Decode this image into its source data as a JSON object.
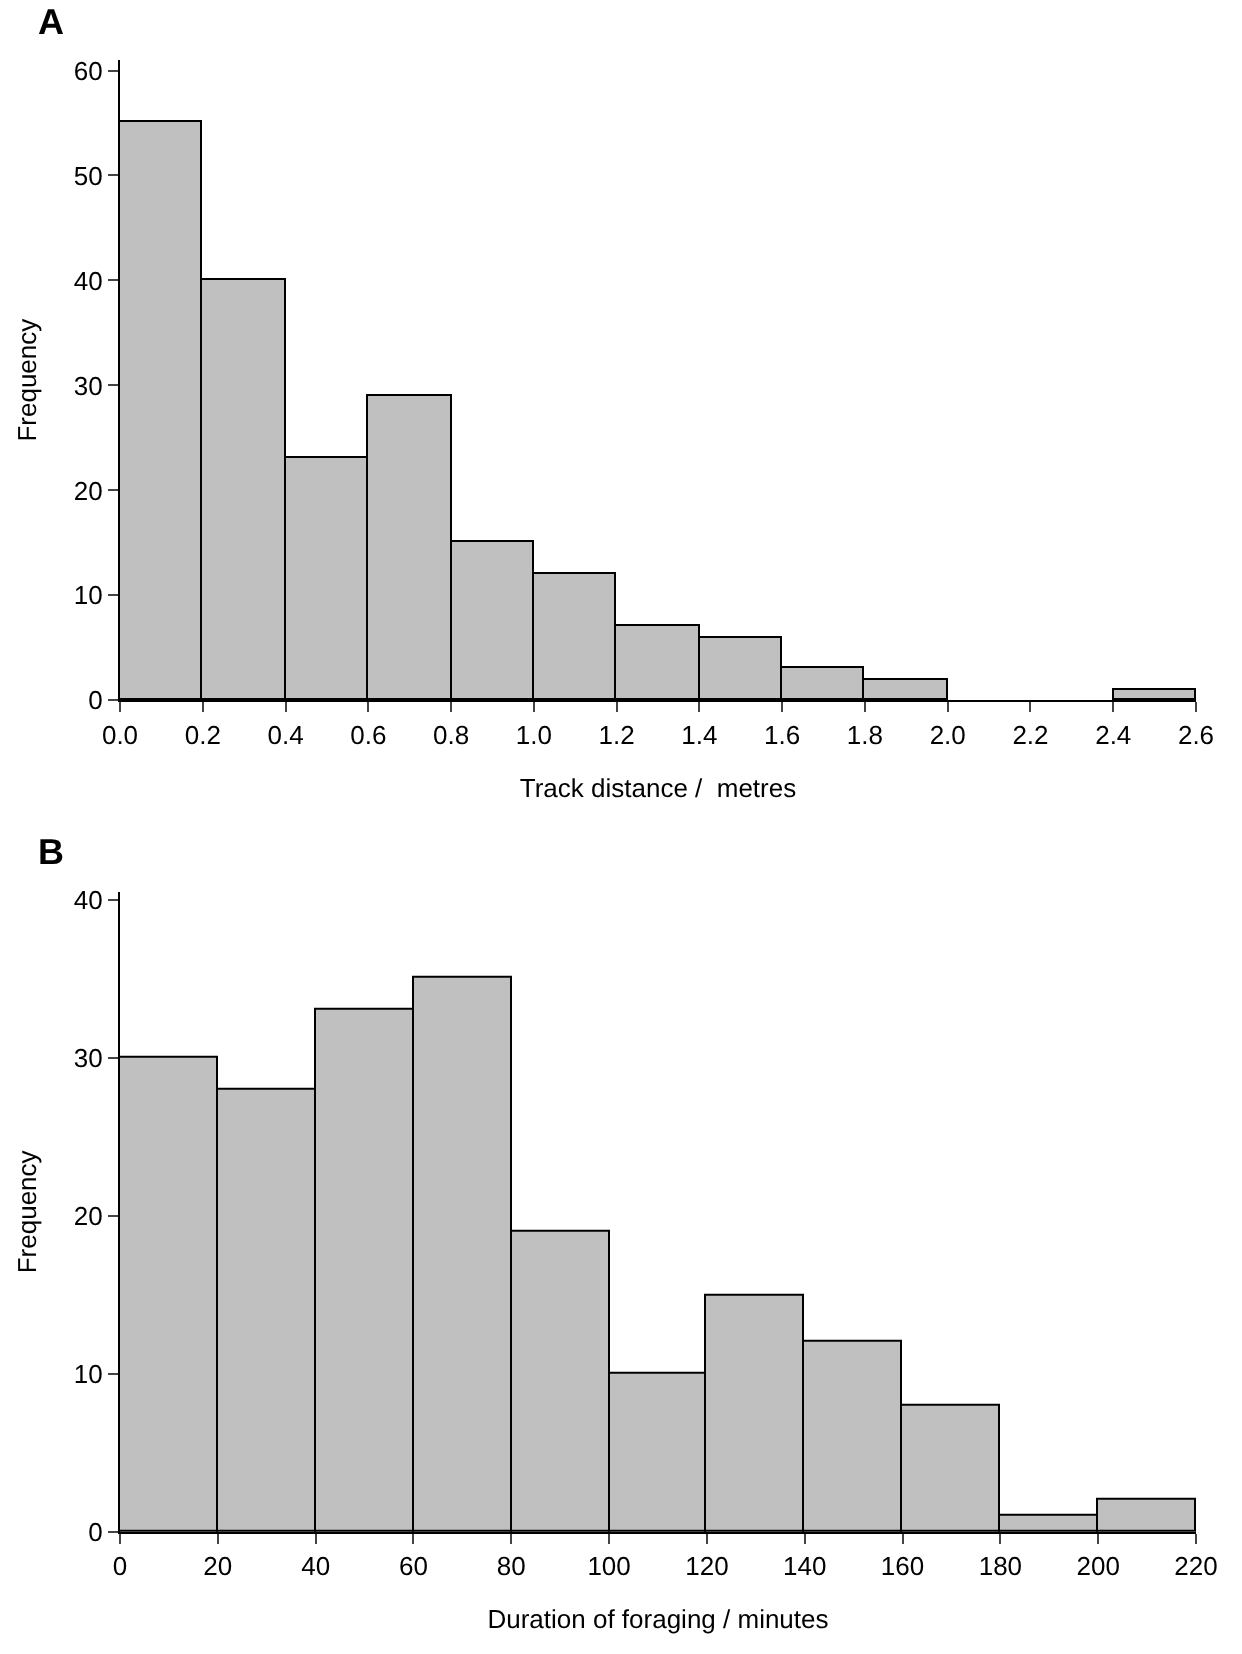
{
  "chart_data": [
    {
      "type": "histogram",
      "title": "A",
      "xlabel": "Track distance /  metres",
      "ylabel": "Frequency",
      "bins": [
        0,
        0.2,
        0.4,
        0.6,
        0.8,
        1.0,
        1.2,
        1.4,
        1.6,
        1.8,
        2.0,
        2.2,
        2.4,
        2.6
      ],
      "values": [
        55,
        40,
        23,
        29,
        15,
        12,
        7,
        6,
        3,
        2,
        0,
        0,
        1
      ],
      "color": "#c0c0c0",
      "xlim": [
        0,
        2.6
      ],
      "xticks": [
        {
          "value": 0,
          "label": "0.0"
        },
        0.2,
        0.4,
        0.6,
        0.8,
        {
          "value": 1,
          "label": "1.0"
        },
        1.2,
        1.4,
        1.6,
        1.8,
        {
          "value": 2,
          "label": "2.0"
        },
        2.2,
        2.4,
        2.6
      ],
      "ylim": [
        0,
        61
      ],
      "yticks": [
        0,
        10,
        20,
        30,
        40,
        50,
        60
      ]
    },
    {
      "type": "histogram",
      "title": "B",
      "xlabel": "Duration of foraging / minutes",
      "ylabel": "Frequency",
      "bins": [
        0,
        20,
        40,
        60,
        80,
        100,
        120,
        140,
        160,
        180,
        200,
        220
      ],
      "values": [
        30,
        28,
        33,
        35,
        19,
        10,
        15,
        12,
        8,
        1,
        2
      ],
      "color": "#c0c0c0",
      "xlim": [
        0,
        220
      ],
      "xticks": [
        0,
        20,
        40,
        60,
        80,
        100,
        120,
        140,
        160,
        180,
        200,
        220
      ],
      "ylim": [
        0,
        40.5
      ],
      "yticks": [
        0,
        10,
        20,
        30,
        40
      ]
    }
  ]
}
